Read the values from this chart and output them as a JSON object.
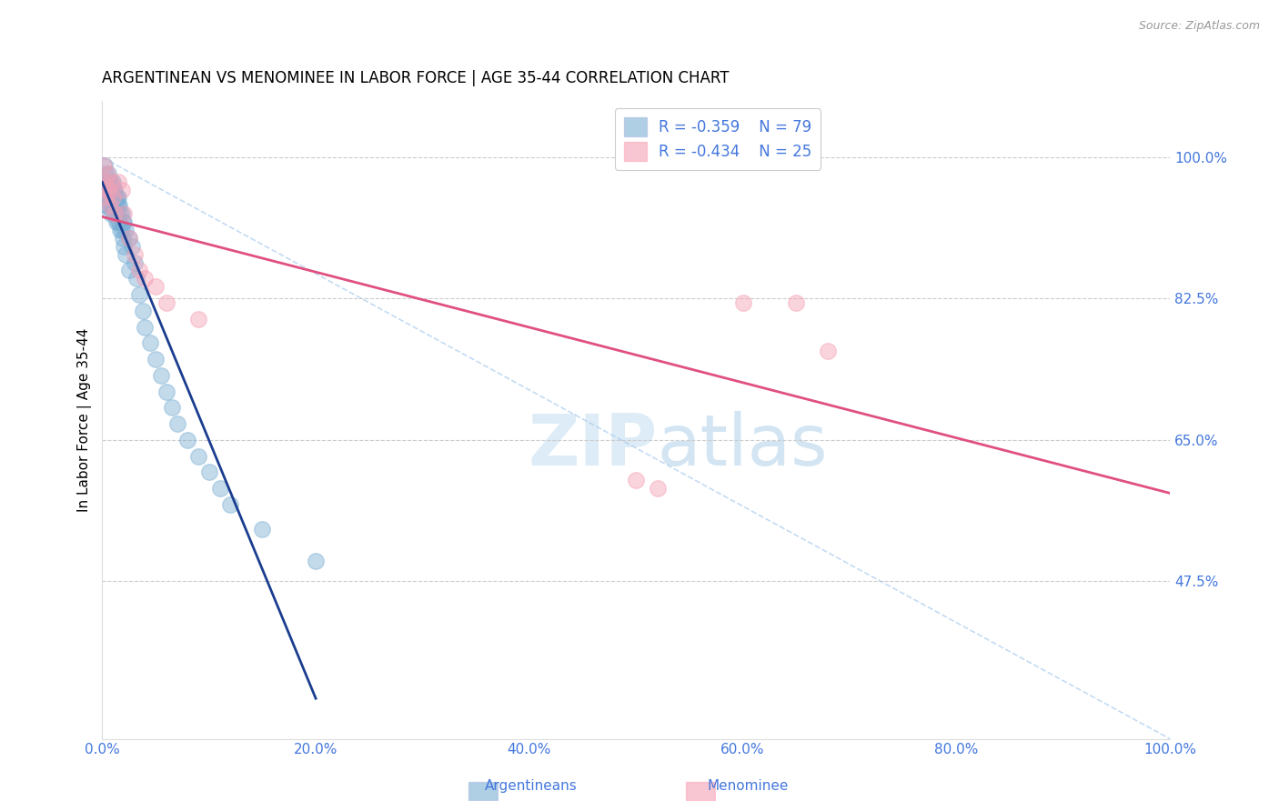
{
  "title": "ARGENTINEAN VS MENOMINEE IN LABOR FORCE | AGE 35-44 CORRELATION CHART",
  "source_text": "Source: ZipAtlas.com",
  "ylabel": "In Labor Force | Age 35-44",
  "blue_R": -0.359,
  "blue_N": 79,
  "pink_R": -0.434,
  "pink_N": 25,
  "blue_color": "#7BAFD4",
  "pink_color": "#F4A0B5",
  "blue_line_color": "#1A3D8F",
  "pink_line_color": "#E05080",
  "dash_line_color": "#AACCEE",
  "legend_label_blue": "Argentineans",
  "legend_label_pink": "Menominee",
  "text_color": "#4477DD",
  "blue_x": [
    0.001,
    0.002,
    0.002,
    0.003,
    0.003,
    0.003,
    0.004,
    0.004,
    0.004,
    0.005,
    0.005,
    0.005,
    0.005,
    0.006,
    0.006,
    0.006,
    0.006,
    0.007,
    0.007,
    0.007,
    0.007,
    0.008,
    0.008,
    0.008,
    0.008,
    0.009,
    0.009,
    0.009,
    0.01,
    0.01,
    0.01,
    0.01,
    0.011,
    0.011,
    0.011,
    0.012,
    0.012,
    0.012,
    0.013,
    0.013,
    0.013,
    0.014,
    0.014,
    0.015,
    0.015,
    0.015,
    0.016,
    0.016,
    0.017,
    0.017,
    0.018,
    0.018,
    0.019,
    0.019,
    0.02,
    0.02,
    0.022,
    0.022,
    0.025,
    0.025,
    0.028,
    0.03,
    0.032,
    0.035,
    0.038,
    0.04,
    0.045,
    0.05,
    0.055,
    0.06,
    0.065,
    0.07,
    0.08,
    0.09,
    0.1,
    0.11,
    0.12,
    0.15,
    0.2
  ],
  "blue_y": [
    0.97,
    0.96,
    0.99,
    0.98,
    0.97,
    0.96,
    0.96,
    0.95,
    0.94,
    0.97,
    0.96,
    0.95,
    0.94,
    0.98,
    0.97,
    0.96,
    0.95,
    0.97,
    0.96,
    0.95,
    0.94,
    0.97,
    0.96,
    0.95,
    0.93,
    0.96,
    0.95,
    0.94,
    0.97,
    0.96,
    0.95,
    0.94,
    0.96,
    0.95,
    0.93,
    0.96,
    0.95,
    0.93,
    0.95,
    0.94,
    0.92,
    0.95,
    0.93,
    0.95,
    0.94,
    0.92,
    0.94,
    0.92,
    0.93,
    0.91,
    0.93,
    0.91,
    0.92,
    0.9,
    0.92,
    0.89,
    0.91,
    0.88,
    0.9,
    0.86,
    0.89,
    0.87,
    0.85,
    0.83,
    0.81,
    0.79,
    0.77,
    0.75,
    0.73,
    0.71,
    0.69,
    0.67,
    0.65,
    0.63,
    0.61,
    0.59,
    0.57,
    0.54,
    0.5
  ],
  "pink_x": [
    0.001,
    0.002,
    0.003,
    0.004,
    0.005,
    0.006,
    0.007,
    0.008,
    0.01,
    0.012,
    0.015,
    0.018,
    0.02,
    0.025,
    0.03,
    0.035,
    0.04,
    0.05,
    0.06,
    0.09,
    0.5,
    0.52,
    0.6,
    0.65,
    0.68
  ],
  "pink_y": [
    0.99,
    0.96,
    0.97,
    0.95,
    0.98,
    0.96,
    0.94,
    0.97,
    0.95,
    0.93,
    0.97,
    0.96,
    0.93,
    0.9,
    0.88,
    0.86,
    0.85,
    0.84,
    0.82,
    0.8,
    0.6,
    0.59,
    0.82,
    0.82,
    0.76
  ],
  "xlim_min": 0.0,
  "xlim_max": 1.0,
  "ylim_min": 0.28,
  "ylim_max": 1.07,
  "ytick_positions": [
    0.475,
    0.65,
    0.825,
    1.0
  ],
  "ytick_labels": [
    "47.5%",
    "65.0%",
    "82.5%",
    "100.0%"
  ],
  "xtick_positions": [
    0.0,
    0.2,
    0.4,
    0.6,
    0.8,
    1.0
  ],
  "xtick_labels": [
    "0.0%",
    "20.0%",
    "40.0%",
    "60.0%",
    "80.0%",
    "100.0%"
  ]
}
